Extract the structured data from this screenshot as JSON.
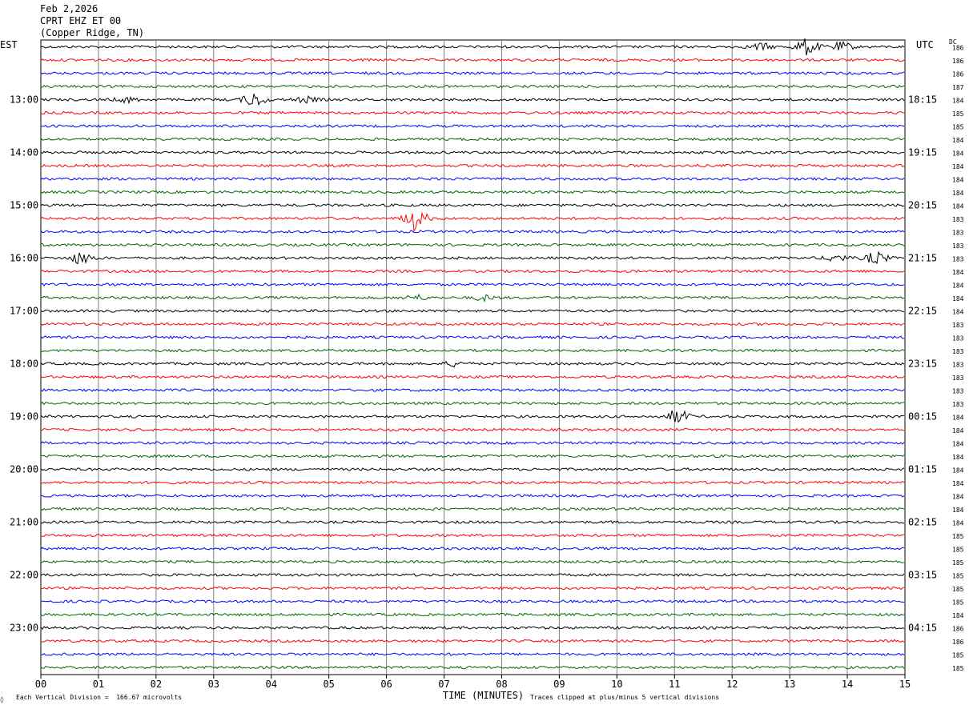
{
  "header": {
    "date": "Feb 2,2026",
    "station": "CPRT EHZ ET 00",
    "location": "(Copper Ridge, TN)"
  },
  "left_label": "EST",
  "right_label": "UTC",
  "dc_label": "DC",
  "footer": {
    "scale_note": "Each Vertical Division =  166.67 microvolts",
    "clip_note": "Traces clipped at plus/minus 5 vertical divisions",
    "mark": "◊"
  },
  "chart_data": {
    "type": "line",
    "title": "",
    "xlabel": "TIME (MINUTES)",
    "x_ticks": [
      "00",
      "01",
      "02",
      "03",
      "04",
      "05",
      "06",
      "07",
      "08",
      "09",
      "10",
      "11",
      "12",
      "13",
      "14",
      "15"
    ],
    "xlim": [
      0,
      15
    ],
    "est_hours": [
      "13:00",
      "14:00",
      "15:00",
      "16:00",
      "17:00",
      "18:00",
      "19:00",
      "20:00",
      "21:00",
      "22:00",
      "23:00"
    ],
    "utc_hours": [
      "18:15",
      "19:15",
      "20:15",
      "21:15",
      "22:15",
      "23:15",
      "00:15",
      "01:15",
      "02:15",
      "03:15",
      "04:15"
    ],
    "trace_colors": [
      "#000000",
      "#ff0000",
      "#0000ff",
      "#006400"
    ],
    "dc_offsets": [
      186,
      186,
      186,
      187,
      184,
      185,
      185,
      184,
      184,
      184,
      184,
      184,
      184,
      183,
      183,
      183,
      183,
      184,
      184,
      184,
      184,
      183,
      183,
      183,
      183,
      183,
      183,
      183,
      184,
      184,
      184,
      184,
      184,
      184,
      184,
      184,
      184,
      185,
      185,
      185,
      185,
      185,
      185,
      184,
      186,
      186,
      185,
      185
    ],
    "events": [
      {
        "trace": 0,
        "minute": 13.3,
        "amplitude": 10
      },
      {
        "trace": 0,
        "minute": 12.5,
        "amplitude": 4
      },
      {
        "trace": 0,
        "minute": 13.9,
        "amplitude": 5
      },
      {
        "trace": 4,
        "minute": 3.7,
        "amplitude": 8
      },
      {
        "trace": 4,
        "minute": 1.5,
        "amplitude": 3
      },
      {
        "trace": 4,
        "minute": 4.6,
        "amplitude": 3
      },
      {
        "trace": 13,
        "minute": 6.5,
        "amplitude": 14
      },
      {
        "trace": 16,
        "minute": 0.7,
        "amplitude": 7
      },
      {
        "trace": 16,
        "minute": 13.8,
        "amplitude": 4
      },
      {
        "trace": 16,
        "minute": 14.5,
        "amplitude": 7
      },
      {
        "trace": 19,
        "minute": 6.5,
        "amplitude": 3
      },
      {
        "trace": 19,
        "minute": 7.7,
        "amplitude": 3
      },
      {
        "trace": 24,
        "minute": 7.2,
        "amplitude": 3
      },
      {
        "trace": 28,
        "minute": 11.05,
        "amplitude": 8
      }
    ]
  }
}
